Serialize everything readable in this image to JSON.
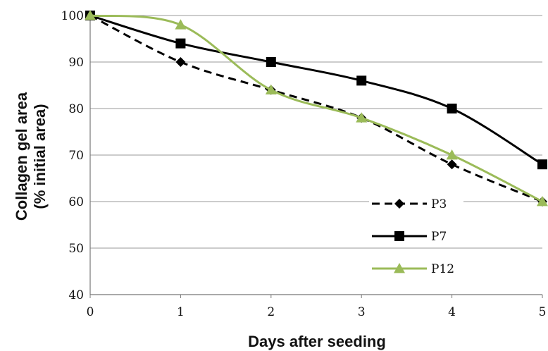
{
  "chart_data": {
    "type": "line",
    "title": "",
    "xlabel": "Days after seeding",
    "ylabel_lines": [
      "Collagen gel area",
      "(% initial area)"
    ],
    "x": [
      0,
      1,
      2,
      3,
      4,
      5
    ],
    "x_ticks": [
      "0",
      "1",
      "2",
      "3",
      "4",
      "5"
    ],
    "ylim": [
      40,
      100
    ],
    "y_ticks": [
      "40",
      "50",
      "60",
      "70",
      "80",
      "90",
      "100"
    ],
    "grid": "horizontal",
    "legend_position": "bottom-right",
    "series": [
      {
        "name": "P3",
        "values": [
          100,
          90,
          84,
          78,
          68,
          60
        ],
        "color": "#000000",
        "dash": "dashed",
        "marker": "diamond",
        "curve": "smooth"
      },
      {
        "name": "P7",
        "values": [
          100,
          94,
          90,
          86,
          80,
          68
        ],
        "color": "#000000",
        "dash": "solid",
        "marker": "square",
        "curve": "smooth"
      },
      {
        "name": "P12",
        "values": [
          100,
          98,
          84,
          78,
          70,
          60
        ],
        "color": "#9bbb59",
        "dash": "solid",
        "marker": "triangle",
        "curve": "smooth"
      }
    ]
  }
}
